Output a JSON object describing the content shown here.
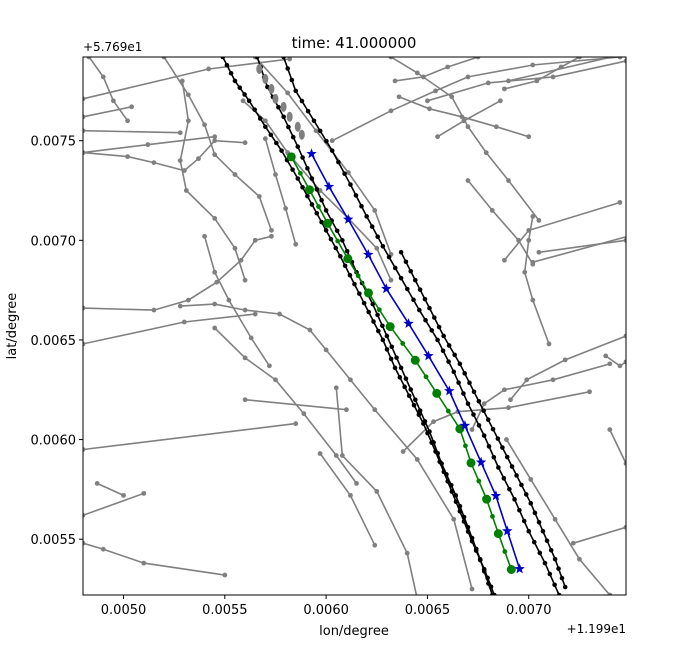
{
  "chart_data": {
    "type": "line",
    "title": "time: 41.000000",
    "xlabel": "lon/degree",
    "ylabel": "lat/degree",
    "x_offset_label": "+1.199e1",
    "y_offset_label": "+5.769e1",
    "xlim": [
      0.0048,
      0.00748
    ],
    "ylim": [
      0.00522,
      0.00792
    ],
    "x_ticks": [
      0.005,
      0.0055,
      0.006,
      0.0065,
      0.007
    ],
    "x_tick_labels": [
      "0.0050",
      "0.0055",
      "0.0060",
      "0.0065",
      "0.0070"
    ],
    "y_ticks": [
      0.0055,
      0.006,
      0.0065,
      0.007,
      0.0075
    ],
    "y_tick_labels": [
      "0.0055",
      "0.0060",
      "0.0065",
      "0.0070",
      "0.0075"
    ],
    "grid": false,
    "colors": {
      "map": "#808080",
      "lane": "#000000",
      "green": "#008000",
      "blue": "#0000cc"
    },
    "map_lines": [
      [
        [
          0.0048,
          0.00771
        ],
        [
          0.00542,
          0.00786
        ],
        [
          0.00582,
          0.00791
        ]
      ],
      [
        [
          0.0048,
          0.00762
        ],
        [
          0.00504,
          0.00767
        ]
      ],
      [
        [
          0.0048,
          0.00744
        ],
        [
          0.00512,
          0.00748
        ],
        [
          0.00545,
          0.00752
        ]
      ],
      [
        [
          0.0048,
          0.00755
        ],
        [
          0.00528,
          0.00754
        ]
      ],
      [
        [
          0.0048,
          0.00744
        ],
        [
          0.00502,
          0.00742
        ],
        [
          0.00515,
          0.00739
        ],
        [
          0.0053,
          0.00735
        ],
        [
          0.00537,
          0.00741
        ],
        [
          0.00545,
          0.0075
        ],
        [
          0.0056,
          0.00749
        ]
      ],
      [
        [
          0.00529,
          0.0078
        ],
        [
          0.00532,
          0.0076
        ],
        [
          0.00528,
          0.0074
        ],
        [
          0.00531,
          0.00725
        ],
        [
          0.00545,
          0.00711
        ],
        [
          0.00555,
          0.00696
        ],
        [
          0.0056,
          0.0068
        ]
      ],
      [
        [
          0.0052,
          0.00792
        ],
        [
          0.00532,
          0.00773
        ],
        [
          0.0054,
          0.00758
        ],
        [
          0.00545,
          0.00743
        ],
        [
          0.00555,
          0.00733
        ],
        [
          0.00567,
          0.00722
        ],
        [
          0.00573,
          0.00705
        ]
      ],
      [
        [
          0.00483,
          0.00792
        ],
        [
          0.0049,
          0.00782
        ],
        [
          0.00495,
          0.0077
        ],
        [
          0.00502,
          0.0076
        ]
      ],
      [
        [
          0.0048,
          0.00666
        ],
        [
          0.00515,
          0.00665
        ],
        [
          0.00532,
          0.0067
        ],
        [
          0.00546,
          0.00679
        ],
        [
          0.00558,
          0.0069
        ],
        [
          0.00565,
          0.007
        ],
        [
          0.00573,
          0.00702
        ]
      ],
      [
        [
          0.0048,
          0.00648
        ],
        [
          0.0053,
          0.00659
        ],
        [
          0.00565,
          0.00663
        ]
      ],
      [
        [
          0.00528,
          0.00667
        ],
        [
          0.00545,
          0.00668
        ],
        [
          0.0056,
          0.00665
        ],
        [
          0.00577,
          0.00663
        ],
        [
          0.00592,
          0.00655
        ],
        [
          0.006,
          0.00645
        ],
        [
          0.00612,
          0.0063
        ],
        [
          0.00624,
          0.00615
        ],
        [
          0.00645,
          0.0059
        ],
        [
          0.00663,
          0.0056
        ],
        [
          0.00672,
          0.00525
        ]
      ],
      [
        [
          0.0056,
          0.0062
        ],
        [
          0.0061,
          0.00615
        ]
      ],
      [
        [
          0.00545,
          0.00656
        ],
        [
          0.0056,
          0.00641
        ],
        [
          0.00575,
          0.0063
        ],
        [
          0.00589,
          0.00613
        ],
        [
          0.00605,
          0.00592
        ],
        [
          0.00615,
          0.00578
        ]
      ],
      [
        [
          0.0048,
          0.00595
        ],
        [
          0.00585,
          0.00608
        ]
      ],
      [
        [
          0.0048,
          0.00562
        ],
        [
          0.0051,
          0.00573
        ]
      ],
      [
        [
          0.00487,
          0.00578
        ],
        [
          0.005,
          0.00572
        ]
      ],
      [
        [
          0.0048,
          0.00548
        ],
        [
          0.0049,
          0.00545
        ],
        [
          0.0051,
          0.00538
        ],
        [
          0.0055,
          0.00532
        ]
      ],
      [
        [
          0.00605,
          0.00626
        ],
        [
          0.00608,
          0.00592
        ],
        [
          0.00625,
          0.00574
        ],
        [
          0.0064,
          0.00543
        ],
        [
          0.00645,
          0.0052
        ]
      ],
      [
        [
          0.00559,
          0.0077
        ],
        [
          0.0057,
          0.0076
        ],
        [
          0.00581,
          0.00744
        ],
        [
          0.00597,
          0.00725
        ],
        [
          0.00611,
          0.00711
        ],
        [
          0.00625,
          0.00696
        ],
        [
          0.00632,
          0.0068
        ]
      ],
      [
        [
          0.00565,
          0.00792
        ],
        [
          0.00581,
          0.00774
        ],
        [
          0.00595,
          0.00755
        ],
        [
          0.00611,
          0.00734
        ],
        [
          0.00624,
          0.00715
        ],
        [
          0.00632,
          0.00693
        ]
      ],
      [
        [
          0.0054,
          0.00702
        ],
        [
          0.00545,
          0.00684
        ],
        [
          0.00552,
          0.0067
        ],
        [
          0.00563,
          0.00651
        ],
        [
          0.00572,
          0.00637
        ]
      ],
      [
        [
          0.0057,
          0.00751
        ],
        [
          0.00575,
          0.00733
        ],
        [
          0.0058,
          0.00716
        ],
        [
          0.00585,
          0.00698
        ]
      ],
      [
        [
          0.00603,
          0.0075
        ],
        [
          0.00632,
          0.00765
        ],
        [
          0.00654,
          0.00775
        ],
        [
          0.0067,
          0.00782
        ],
        [
          0.00702,
          0.00788
        ],
        [
          0.00745,
          0.00792
        ]
      ],
      [
        [
          0.00632,
          0.00792
        ],
        [
          0.00645,
          0.00784
        ],
        [
          0.00662,
          0.00772
        ],
        [
          0.0067,
          0.00757
        ],
        [
          0.00679,
          0.00744
        ],
        [
          0.0069,
          0.0073
        ],
        [
          0.00705,
          0.0071
        ]
      ],
      [
        [
          0.00636,
          0.00772
        ],
        [
          0.00651,
          0.00766
        ],
        [
          0.00667,
          0.00762
        ],
        [
          0.00684,
          0.00757
        ],
        [
          0.007,
          0.00752
        ]
      ],
      [
        [
          0.00634,
          0.0078
        ],
        [
          0.00648,
          0.00782
        ],
        [
          0.0066,
          0.00787
        ],
        [
          0.00675,
          0.00792
        ]
      ],
      [
        [
          0.00688,
          0.00776
        ],
        [
          0.00704,
          0.0078
        ],
        [
          0.00716,
          0.00787
        ],
        [
          0.00725,
          0.00792
        ]
      ],
      [
        [
          0.00655,
          0.00752
        ],
        [
          0.00668,
          0.0076
        ],
        [
          0.00686,
          0.0077
        ]
      ],
      [
        [
          0.0069,
          0.0078
        ],
        [
          0.00745,
          0.00793
        ]
      ],
      [
        [
          0.0065,
          0.0077
        ],
        [
          0.0068,
          0.00779
        ],
        [
          0.00712,
          0.00782
        ],
        [
          0.00748,
          0.0079
        ]
      ],
      [
        [
          0.0067,
          0.0073
        ],
        [
          0.00682,
          0.00715
        ],
        [
          0.00695,
          0.007
        ],
        [
          0.00702,
          0.00688
        ]
      ],
      [
        [
          0.00688,
          0.0069
        ],
        [
          0.007,
          0.00705
        ],
        [
          0.00745,
          0.00719
        ]
      ],
      [
        [
          0.00705,
          0.00694
        ],
        [
          0.00748,
          0.007
        ]
      ],
      [
        [
          0.00702,
          0.00712
        ],
        [
          0.007,
          0.007
        ],
        [
          0.00698,
          0.00684
        ],
        [
          0.00702,
          0.0067
        ],
        [
          0.0071,
          0.00648
        ]
      ],
      [
        [
          0.00702,
          0.00689
        ],
        [
          0.00749,
          0.00702
        ]
      ],
      [
        [
          0.00672,
          0.00605
        ],
        [
          0.00678,
          0.00618
        ],
        [
          0.00688,
          0.00625
        ],
        [
          0.00712,
          0.0063
        ],
        [
          0.0074,
          0.00638
        ]
      ],
      [
        [
          0.00691,
          0.0062
        ],
        [
          0.00699,
          0.0063
        ],
        [
          0.00718,
          0.0064
        ],
        [
          0.00748,
          0.00652
        ]
      ],
      [
        [
          0.00689,
          0.006
        ],
        [
          0.00701,
          0.0058
        ],
        [
          0.00713,
          0.0056
        ],
        [
          0.00725,
          0.0054
        ],
        [
          0.0074,
          0.00522
        ]
      ],
      [
        [
          0.0074,
          0.00605
        ],
        [
          0.00748,
          0.00588
        ]
      ],
      [
        [
          0.00722,
          0.00548
        ],
        [
          0.00748,
          0.00556
        ]
      ],
      [
        [
          0.00738,
          0.00642
        ],
        [
          0.00745,
          0.00637
        ],
        [
          0.00748,
          0.00639
        ]
      ],
      [
        [
          0.00638,
          0.00594
        ],
        [
          0.00653,
          0.00609
        ],
        [
          0.00665,
          0.00614
        ],
        [
          0.0069,
          0.00616
        ],
        [
          0.0073,
          0.00624
        ]
      ],
      [
        [
          0.00597,
          0.00593
        ],
        [
          0.00612,
          0.00572
        ],
        [
          0.00624,
          0.00547
        ]
      ]
    ],
    "lane_lines": [
      [
        [
          0.00579,
          0.00792
        ],
        [
          0.00585,
          0.00775
        ],
        [
          0.00594,
          0.0076
        ],
        [
          0.00603,
          0.00745
        ],
        [
          0.00612,
          0.00728
        ],
        [
          0.0062,
          0.00712
        ],
        [
          0.00628,
          0.00697
        ],
        [
          0.00637,
          0.00681
        ],
        [
          0.00646,
          0.00665
        ],
        [
          0.00655,
          0.0065
        ],
        [
          0.00663,
          0.00634
        ],
        [
          0.0067,
          0.00618
        ],
        [
          0.00678,
          0.00602
        ],
        [
          0.00685,
          0.00586
        ],
        [
          0.00693,
          0.0057
        ],
        [
          0.007,
          0.00554
        ],
        [
          0.00708,
          0.00538
        ],
        [
          0.00715,
          0.00522
        ]
      ],
      [
        [
          0.00566,
          0.00792
        ],
        [
          0.00571,
          0.00777
        ],
        [
          0.00579,
          0.00762
        ],
        [
          0.00586,
          0.00747
        ],
        [
          0.00593,
          0.00731
        ],
        [
          0.006,
          0.00715
        ],
        [
          0.00608,
          0.007
        ],
        [
          0.00615,
          0.00684
        ],
        [
          0.00623,
          0.00668
        ],
        [
          0.0063,
          0.00652
        ],
        [
          0.00637,
          0.00636
        ],
        [
          0.00644,
          0.0062
        ],
        [
          0.00651,
          0.00604
        ],
        [
          0.00657,
          0.00588
        ],
        [
          0.00664,
          0.00572
        ],
        [
          0.0067,
          0.00556
        ],
        [
          0.00676,
          0.0054
        ],
        [
          0.00682,
          0.00522
        ]
      ],
      [
        [
          0.00549,
          0.00792
        ],
        [
          0.00555,
          0.0078
        ],
        [
          0.00562,
          0.0077
        ],
        [
          0.0057,
          0.00757
        ],
        [
          0.00578,
          0.00745
        ],
        [
          0.00586,
          0.00731
        ],
        [
          0.00593,
          0.00718
        ],
        [
          0.006,
          0.00705
        ],
        [
          0.00607,
          0.00692
        ],
        [
          0.00614,
          0.00678
        ],
        [
          0.00621,
          0.00664
        ],
        [
          0.00628,
          0.0065
        ],
        [
          0.00634,
          0.00636
        ],
        [
          0.00641,
          0.00622
        ],
        [
          0.00648,
          0.00608
        ],
        [
          0.00654,
          0.00594
        ],
        [
          0.0066,
          0.00579
        ],
        [
          0.00666,
          0.00564
        ],
        [
          0.00672,
          0.00549
        ],
        [
          0.00678,
          0.00535
        ],
        [
          0.00683,
          0.00522
        ]
      ],
      [
        [
          0.00637,
          0.00694
        ],
        [
          0.00644,
          0.0068
        ],
        [
          0.00651,
          0.00666
        ],
        [
          0.00658,
          0.00652
        ],
        [
          0.00666,
          0.00638
        ],
        [
          0.00673,
          0.00624
        ],
        [
          0.0068,
          0.0061
        ],
        [
          0.00687,
          0.00596
        ],
        [
          0.00694,
          0.00582
        ],
        [
          0.00701,
          0.00568
        ],
        [
          0.00707,
          0.00554
        ],
        [
          0.00713,
          0.0054
        ],
        [
          0.00718,
          0.00526
        ]
      ]
    ],
    "lane_points": [
      [
        0.00567,
        0.00786
      ],
      [
        0.0057,
        0.00781
      ],
      [
        0.00573,
        0.00776
      ],
      [
        0.00575,
        0.00771
      ],
      [
        0.00579,
        0.00767
      ],
      [
        0.00582,
        0.00762
      ],
      [
        0.00586,
        0.00757
      ],
      [
        0.00588,
        0.00753
      ]
    ],
    "green_points": [
      [
        0.005828,
        0.007419
      ],
      [
        0.005918,
        0.007254
      ],
      [
        0.006007,
        0.007085
      ],
      [
        0.006107,
        0.006908
      ],
      [
        0.006209,
        0.006736
      ],
      [
        0.006316,
        0.006567
      ],
      [
        0.00644,
        0.006398
      ],
      [
        0.006546,
        0.006232
      ],
      [
        0.00666,
        0.006054
      ],
      [
        0.006715,
        0.005883
      ],
      [
        0.006792,
        0.005701
      ],
      [
        0.00685,
        0.005528
      ],
      [
        0.006914,
        0.005348
      ]
    ],
    "blue_points": [
      [
        0.005928,
        0.007434
      ],
      [
        0.006014,
        0.007269
      ],
      [
        0.006109,
        0.007105
      ],
      [
        0.006208,
        0.006928
      ],
      [
        0.006297,
        0.006757
      ],
      [
        0.006407,
        0.006582
      ],
      [
        0.006505,
        0.00642
      ],
      [
        0.006608,
        0.006244
      ],
      [
        0.006685,
        0.00607
      ],
      [
        0.006765,
        0.005886
      ],
      [
        0.006838,
        0.005718
      ],
      [
        0.006894,
        0.005541
      ],
      [
        0.006955,
        0.005351
      ]
    ]
  }
}
